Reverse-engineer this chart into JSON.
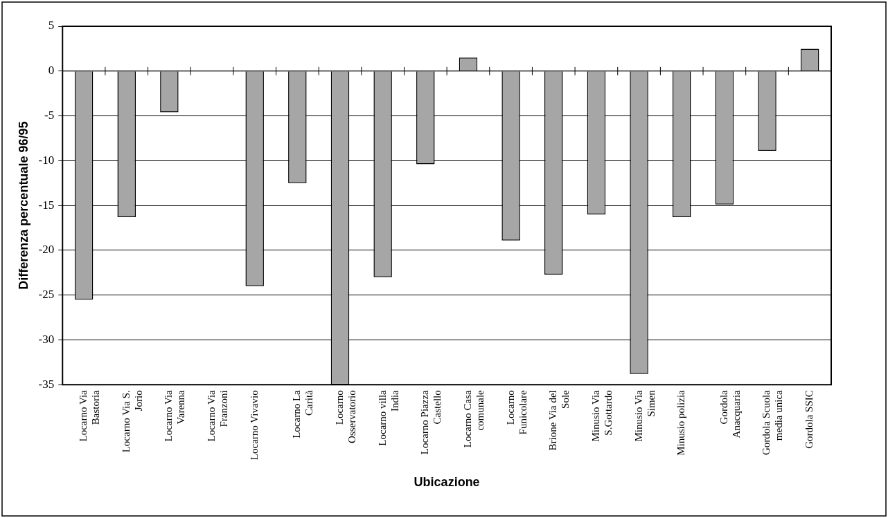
{
  "chart_data": {
    "type": "bar",
    "xlabel": "Ubicazione",
    "ylabel": "Differenza percentuale 96/95",
    "categories": [
      "Locarno Via Bastoria",
      "Locarno Via S. Jorio",
      "Locarno Via Varenna",
      "Locarno Via Franzoni",
      "Locarno Vivavio",
      "Locarno La Carità",
      "Locarno Osservatorio",
      "Locarno villa India",
      "Locarno Piazza Castello",
      "Locarno Casa comunale",
      "Locarno Funicolare",
      "Brione Via del Sole",
      "Minusio Via S.Gottardo",
      "Minusio Via Simen",
      "Minusio polizia",
      "Gordola Anacquaria",
      "Gordola Scuola media unica",
      "Gordola SSIC"
    ],
    "values": [
      -25.5,
      -16.3,
      -4.6,
      null,
      -24.0,
      -12.5,
      -35,
      -23.0,
      -10.4,
      1.5,
      -18.9,
      -22.7,
      -16.0,
      -33.8,
      -16.3,
      -14.9,
      -8.9,
      2.5
    ],
    "color": "#a6a6a6",
    "ylim": [
      -35,
      5
    ],
    "yticks": [
      -35,
      -30,
      -25,
      -20,
      -15,
      -10,
      -5,
      0,
      5
    ],
    "grid": "y",
    "legend": false
  }
}
